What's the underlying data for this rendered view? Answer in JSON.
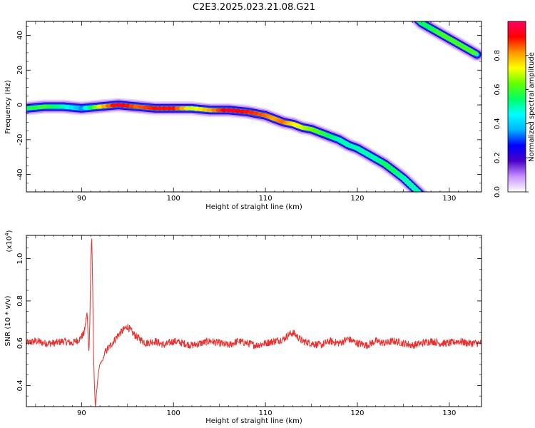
{
  "title": "C2E3.2025.023.21.08.G21",
  "chart_data": [
    {
      "type": "heatmap",
      "xlabel": "Height of straight line (km)",
      "ylabel": "Frequency (Hz)",
      "xlim": [
        84,
        133.5
      ],
      "ylim": [
        -50,
        48
      ],
      "x_ticks": [
        "90",
        "100",
        "110",
        "120",
        "130"
      ],
      "x_tick_values": [
        90,
        100,
        110,
        120,
        130
      ],
      "y_ticks": [
        "40",
        "20",
        "0",
        "-20",
        "-40"
      ],
      "y_tick_values": [
        40,
        20,
        0,
        -20,
        -40
      ],
      "colorbar": {
        "label": "Normalized spectral amplitude",
        "range": [
          0,
          1
        ],
        "ticks": [
          "0.0",
          "0.2",
          "0.4",
          "0.6",
          "0.8"
        ],
        "tick_values": [
          0.0,
          0.2,
          0.4,
          0.6,
          0.8
        ],
        "colormap": [
          "#ffffff",
          "#c890ff",
          "#4b00c8",
          "#0000ff",
          "#00b4ff",
          "#00ffff",
          "#00ff64",
          "#64ff00",
          "#ffff00",
          "#ff9600",
          "#ff0000",
          "#ff0064"
        ]
      },
      "series": [
        {
          "x": [
            84,
            86,
            88,
            90,
            92,
            94,
            96,
            98,
            100,
            102,
            104,
            106,
            108,
            110,
            111,
            112,
            113,
            114,
            115,
            116,
            117,
            118,
            119,
            120,
            121,
            122,
            123,
            124,
            125,
            126,
            127
          ],
          "y": [
            -2,
            -1,
            -1,
            -2,
            -1,
            0,
            -1,
            -2,
            -2,
            -2,
            -3,
            -3,
            -4,
            -6,
            -8,
            -10,
            -11,
            -13,
            -14,
            -16,
            -18,
            -20,
            -23,
            -25,
            -28,
            -31,
            -34,
            -38,
            -42,
            -47,
            -52
          ],
          "intensity": [
            0.55,
            0.6,
            0.5,
            0.35,
            0.75,
            0.95,
            0.85,
            0.9,
            0.9,
            0.7,
            0.8,
            0.95,
            0.9,
            0.85,
            0.8,
            0.85,
            0.75,
            0.7,
            0.65,
            0.6,
            0.55,
            0.5,
            0.5,
            0.5,
            0.5,
            0.5,
            0.55,
            0.55,
            0.5,
            0.5,
            0.5
          ]
        },
        {
          "x": [
            126,
            127,
            128,
            129,
            130,
            131,
            132,
            133
          ],
          "y": [
            52,
            47,
            44,
            41,
            38,
            35,
            32,
            29
          ],
          "intensity": [
            0.5,
            0.55,
            0.55,
            0.6,
            0.6,
            0.6,
            0.6,
            0.6
          ]
        }
      ]
    },
    {
      "type": "line",
      "xlabel": "Height of straight line (km)",
      "ylabel": "SNR (10 * v/v)",
      "y_exponent": "(x10",
      "y_exponent_power": "4",
      "y_exponent_close": ")",
      "xlim": [
        84,
        133.5
      ],
      "ylim": [
        0.3,
        1.11
      ],
      "x_ticks": [
        "90",
        "100",
        "110",
        "120",
        "130"
      ],
      "x_tick_values": [
        90,
        100,
        110,
        120,
        130
      ],
      "y_ticks": [
        "1.0",
        "0.8",
        "0.6",
        "0.4"
      ],
      "y_tick_values": [
        1.0,
        0.8,
        0.6,
        0.4
      ],
      "color": "#e8302e",
      "x": [
        84,
        85,
        86,
        87,
        88,
        89,
        89.8,
        90.3,
        90.6,
        90.8,
        90.9,
        91.0,
        91.1,
        91.2,
        91.3,
        91.4,
        91.5,
        91.6,
        91.8,
        92.0,
        92.3,
        92.6,
        93.0,
        93.5,
        94.0,
        94.5,
        95.0,
        95.5,
        96,
        97,
        98,
        99,
        100,
        101,
        102,
        103,
        104,
        105,
        106,
        107,
        108,
        109,
        110,
        111,
        112,
        112.5,
        113,
        113.5,
        114,
        115,
        116,
        117,
        118,
        119,
        120,
        121,
        122,
        123,
        124,
        125,
        126,
        127,
        128,
        129,
        130,
        131,
        132,
        133,
        133.5
      ],
      "y": [
        0.6,
        0.61,
        0.6,
        0.6,
        0.61,
        0.6,
        0.62,
        0.65,
        0.75,
        0.55,
        0.7,
        0.97,
        1.11,
        0.9,
        0.55,
        0.4,
        0.3,
        0.35,
        0.45,
        0.5,
        0.52,
        0.56,
        0.58,
        0.61,
        0.64,
        0.66,
        0.68,
        0.65,
        0.63,
        0.6,
        0.61,
        0.59,
        0.61,
        0.6,
        0.59,
        0.6,
        0.61,
        0.6,
        0.59,
        0.61,
        0.6,
        0.59,
        0.6,
        0.61,
        0.62,
        0.64,
        0.65,
        0.63,
        0.61,
        0.6,
        0.59,
        0.61,
        0.6,
        0.62,
        0.6,
        0.59,
        0.61,
        0.6,
        0.61,
        0.6,
        0.59,
        0.6,
        0.61,
        0.6,
        0.6,
        0.61,
        0.6,
        0.6,
        0.6
      ]
    }
  ]
}
